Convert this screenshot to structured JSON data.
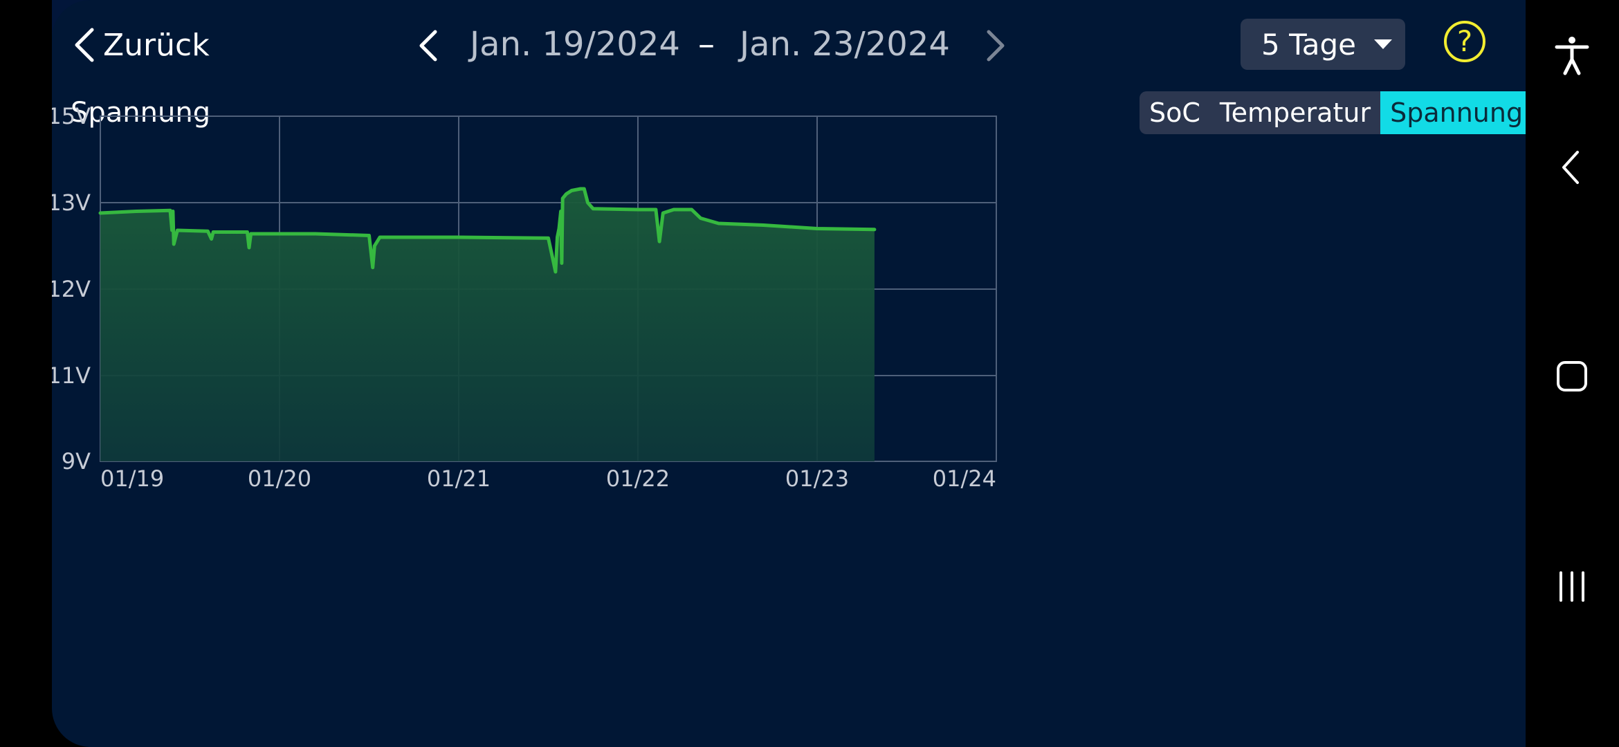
{
  "header": {
    "back_label": "Zurück",
    "start_date": "Jan. 19/2024",
    "separator": "–",
    "end_date": "Jan. 23/2024",
    "range_select": "5 Tage",
    "help_symbol": "?"
  },
  "chart_title": "Spannung",
  "tabs": [
    {
      "label": "SoC",
      "active": false
    },
    {
      "label": "Temperatur",
      "active": false
    },
    {
      "label": "Spannung",
      "active": true
    }
  ],
  "colors": {
    "background": "#011735",
    "line": "#36b940",
    "fill": "#1b5c3a",
    "grid": "#4f607a",
    "accent": "#12dbe6",
    "help": "#f2ed30"
  },
  "chart_data": {
    "type": "area",
    "title": "Spannung",
    "xlabel": "",
    "ylabel": "",
    "y_ticks": [
      {
        "value": 15,
        "label": "15V"
      },
      {
        "value": 13,
        "label": "13V"
      },
      {
        "value": 12,
        "label": "12V"
      },
      {
        "value": 11,
        "label": "11V"
      },
      {
        "value": 9,
        "label": "9V"
      }
    ],
    "x_ticks": [
      {
        "value": 0,
        "label": "01/19"
      },
      {
        "value": 1,
        "label": "01/20"
      },
      {
        "value": 2,
        "label": "01/21"
      },
      {
        "value": 3,
        "label": "01/22"
      },
      {
        "value": 4,
        "label": "01/23"
      },
      {
        "value": 5,
        "label": "01/24"
      }
    ],
    "xlim": [
      0,
      5
    ],
    "ylim": [
      9,
      15
    ],
    "grid": true,
    "series": [
      {
        "points": [
          [
            0.0,
            12.88
          ],
          [
            0.2,
            12.9
          ],
          [
            0.39,
            12.91
          ],
          [
            0.4,
            12.68
          ],
          [
            0.405,
            12.9
          ],
          [
            0.41,
            12.52
          ],
          [
            0.43,
            12.68
          ],
          [
            0.6,
            12.67
          ],
          [
            0.62,
            12.58
          ],
          [
            0.63,
            12.66
          ],
          [
            0.82,
            12.66
          ],
          [
            0.83,
            12.48
          ],
          [
            0.84,
            12.64
          ],
          [
            1.2,
            12.64
          ],
          [
            1.5,
            12.62
          ],
          [
            1.52,
            12.25
          ],
          [
            1.53,
            12.5
          ],
          [
            1.56,
            12.6
          ],
          [
            2.0,
            12.6
          ],
          [
            2.5,
            12.59
          ],
          [
            2.53,
            12.3
          ],
          [
            2.54,
            12.2
          ],
          [
            2.55,
            12.6
          ],
          [
            2.56,
            12.7
          ],
          [
            2.57,
            12.9
          ],
          [
            2.575,
            12.3
          ],
          [
            2.58,
            13.1
          ],
          [
            2.6,
            13.2
          ],
          [
            2.63,
            13.28
          ],
          [
            2.68,
            13.32
          ],
          [
            2.7,
            13.32
          ],
          [
            2.72,
            13.0
          ],
          [
            2.75,
            12.93
          ],
          [
            3.0,
            12.92
          ],
          [
            3.1,
            12.92
          ],
          [
            3.12,
            12.55
          ],
          [
            3.14,
            12.88
          ],
          [
            3.2,
            12.92
          ],
          [
            3.3,
            12.92
          ],
          [
            3.35,
            12.82
          ],
          [
            3.45,
            12.76
          ],
          [
            3.7,
            12.74
          ],
          [
            4.0,
            12.7
          ],
          [
            4.32,
            12.69
          ]
        ]
      }
    ]
  }
}
